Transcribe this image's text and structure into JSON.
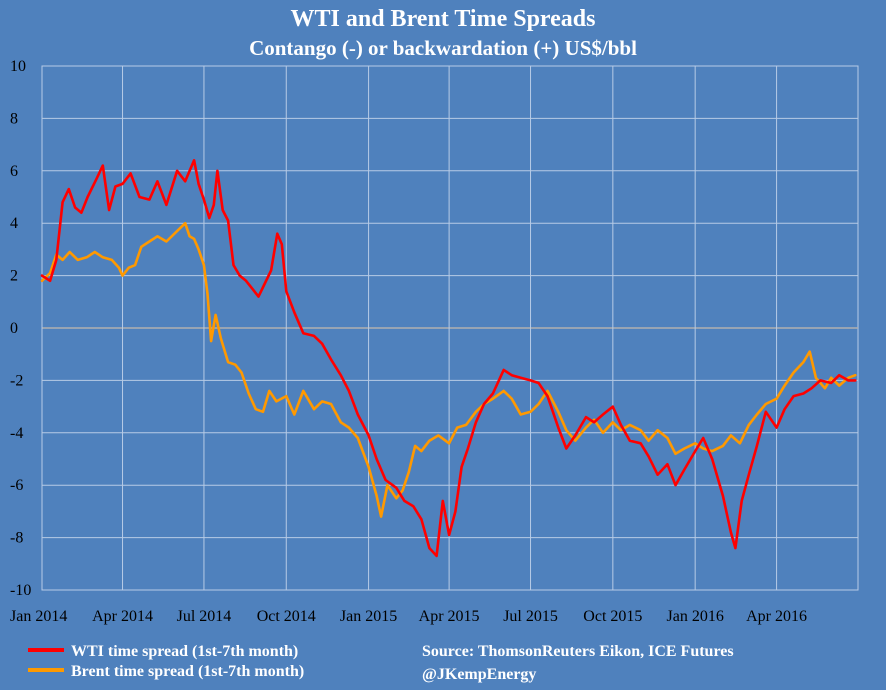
{
  "chart_data": {
    "type": "line",
    "title": "WTI  and Brent Time Spreads",
    "subtitle": "Contango (-) or backwardation (+) US$/bbl",
    "ylim": [
      -10,
      10
    ],
    "y_ticks": [
      10,
      8,
      6,
      4,
      2,
      0,
      -2,
      -4,
      -6,
      -8,
      -10
    ],
    "x_range": [
      "2014-01-01",
      "2016-07-01"
    ],
    "x_ticks": [
      {
        "date": "2014-01-01",
        "label": "Jan 2014"
      },
      {
        "date": "2014-04-01",
        "label": "Apr 2014"
      },
      {
        "date": "2014-07-01",
        "label": "Jul 2014"
      },
      {
        "date": "2014-10-01",
        "label": "Oct 2014"
      },
      {
        "date": "2015-01-01",
        "label": "Jan 2015"
      },
      {
        "date": "2015-04-01",
        "label": "Apr 2015"
      },
      {
        "date": "2015-07-01",
        "label": "Jul 2015"
      },
      {
        "date": "2015-10-01",
        "label": "Oct 2015"
      },
      {
        "date": "2016-01-01",
        "label": "Jan 2016"
      },
      {
        "date": "2016-04-01",
        "label": "Apr 2016"
      }
    ],
    "grid": true,
    "legend_position": "bottom-left",
    "series": [
      {
        "name": "WTI time spread (1st-7th month)",
        "color": "#ff0000",
        "points": [
          [
            "2014-01-01",
            2.0
          ],
          [
            "2014-01-10",
            1.8
          ],
          [
            "2014-01-17",
            2.6
          ],
          [
            "2014-01-24",
            4.8
          ],
          [
            "2014-01-31",
            5.3
          ],
          [
            "2014-02-07",
            4.6
          ],
          [
            "2014-02-14",
            4.4
          ],
          [
            "2014-02-21",
            5.0
          ],
          [
            "2014-03-03",
            5.7
          ],
          [
            "2014-03-10",
            6.2
          ],
          [
            "2014-03-17",
            4.5
          ],
          [
            "2014-03-24",
            5.4
          ],
          [
            "2014-04-01",
            5.5
          ],
          [
            "2014-04-10",
            5.9
          ],
          [
            "2014-04-20",
            5.0
          ],
          [
            "2014-05-01",
            4.9
          ],
          [
            "2014-05-10",
            5.6
          ],
          [
            "2014-05-20",
            4.7
          ],
          [
            "2014-06-01",
            6.0
          ],
          [
            "2014-06-10",
            5.6
          ],
          [
            "2014-06-20",
            6.4
          ],
          [
            "2014-06-25",
            5.5
          ],
          [
            "2014-07-01",
            4.9
          ],
          [
            "2014-07-07",
            4.2
          ],
          [
            "2014-07-12",
            4.7
          ],
          [
            "2014-07-16",
            6.0
          ],
          [
            "2014-07-22",
            4.5
          ],
          [
            "2014-07-28",
            4.1
          ],
          [
            "2014-08-03",
            2.4
          ],
          [
            "2014-08-10",
            2.0
          ],
          [
            "2014-08-17",
            1.8
          ],
          [
            "2014-08-24",
            1.5
          ],
          [
            "2014-08-31",
            1.2
          ],
          [
            "2014-09-07",
            1.7
          ],
          [
            "2014-09-14",
            2.2
          ],
          [
            "2014-09-21",
            3.6
          ],
          [
            "2014-09-26",
            3.2
          ],
          [
            "2014-10-01",
            1.4
          ],
          [
            "2014-10-10",
            0.6
          ],
          [
            "2014-10-20",
            -0.2
          ],
          [
            "2014-11-01",
            -0.3
          ],
          [
            "2014-11-10",
            -0.6
          ],
          [
            "2014-11-20",
            -1.2
          ],
          [
            "2014-12-01",
            -1.8
          ],
          [
            "2014-12-10",
            -2.4
          ],
          [
            "2014-12-20",
            -3.3
          ],
          [
            "2015-01-01",
            -4.1
          ],
          [
            "2015-01-10",
            -5.0
          ],
          [
            "2015-01-20",
            -5.8
          ],
          [
            "2015-02-01",
            -6.1
          ],
          [
            "2015-02-10",
            -6.6
          ],
          [
            "2015-02-20",
            -6.8
          ],
          [
            "2015-03-01",
            -7.3
          ],
          [
            "2015-03-10",
            -8.4
          ],
          [
            "2015-03-18",
            -8.7
          ],
          [
            "2015-03-25",
            -6.6
          ],
          [
            "2015-04-01",
            -7.9
          ],
          [
            "2015-04-08",
            -7.0
          ],
          [
            "2015-04-15",
            -5.3
          ],
          [
            "2015-04-22",
            -4.6
          ],
          [
            "2015-05-01",
            -3.6
          ],
          [
            "2015-05-10",
            -2.9
          ],
          [
            "2015-05-20",
            -2.5
          ],
          [
            "2015-06-01",
            -1.6
          ],
          [
            "2015-06-10",
            -1.8
          ],
          [
            "2015-06-20",
            -1.9
          ],
          [
            "2015-07-01",
            -2.0
          ],
          [
            "2015-07-10",
            -2.1
          ],
          [
            "2015-07-20",
            -2.6
          ],
          [
            "2015-08-01",
            -3.8
          ],
          [
            "2015-08-10",
            -4.6
          ],
          [
            "2015-08-20",
            -4.1
          ],
          [
            "2015-09-01",
            -3.4
          ],
          [
            "2015-09-10",
            -3.6
          ],
          [
            "2015-09-20",
            -3.3
          ],
          [
            "2015-10-01",
            -3.0
          ],
          [
            "2015-10-10",
            -3.7
          ],
          [
            "2015-10-20",
            -4.3
          ],
          [
            "2015-11-01",
            -4.4
          ],
          [
            "2015-11-10",
            -4.9
          ],
          [
            "2015-11-20",
            -5.6
          ],
          [
            "2015-12-01",
            -5.2
          ],
          [
            "2015-12-10",
            -6.0
          ],
          [
            "2015-12-20",
            -5.4
          ],
          [
            "2016-01-01",
            -4.7
          ],
          [
            "2016-01-10",
            -4.2
          ],
          [
            "2016-01-20",
            -5.0
          ],
          [
            "2016-02-01",
            -6.4
          ],
          [
            "2016-02-10",
            -7.8
          ],
          [
            "2016-02-15",
            -8.4
          ],
          [
            "2016-02-22",
            -6.6
          ],
          [
            "2016-03-01",
            -5.6
          ],
          [
            "2016-03-10",
            -4.5
          ],
          [
            "2016-03-20",
            -3.2
          ],
          [
            "2016-04-01",
            -3.8
          ],
          [
            "2016-04-10",
            -3.1
          ],
          [
            "2016-04-20",
            -2.6
          ],
          [
            "2016-05-01",
            -2.5
          ],
          [
            "2016-05-10",
            -2.3
          ],
          [
            "2016-05-20",
            -2.0
          ],
          [
            "2016-06-01",
            -2.1
          ],
          [
            "2016-06-10",
            -1.8
          ],
          [
            "2016-06-20",
            -2.0
          ],
          [
            "2016-06-28",
            -2.0
          ]
        ]
      },
      {
        "name": "Brent time spread (1st-7th month)",
        "color": "#ff9900",
        "points": [
          [
            "2014-01-01",
            1.8
          ],
          [
            "2014-01-10",
            2.1
          ],
          [
            "2014-01-17",
            2.8
          ],
          [
            "2014-01-24",
            2.6
          ],
          [
            "2014-02-01",
            2.9
          ],
          [
            "2014-02-10",
            2.6
          ],
          [
            "2014-02-20",
            2.7
          ],
          [
            "2014-03-01",
            2.9
          ],
          [
            "2014-03-10",
            2.7
          ],
          [
            "2014-03-20",
            2.6
          ],
          [
            "2014-03-28",
            2.3
          ],
          [
            "2014-04-01",
            2.0
          ],
          [
            "2014-04-08",
            2.3
          ],
          [
            "2014-04-15",
            2.4
          ],
          [
            "2014-04-22",
            3.1
          ],
          [
            "2014-05-01",
            3.3
          ],
          [
            "2014-05-10",
            3.5
          ],
          [
            "2014-05-20",
            3.3
          ],
          [
            "2014-06-01",
            3.7
          ],
          [
            "2014-06-10",
            4.0
          ],
          [
            "2014-06-15",
            3.5
          ],
          [
            "2014-06-20",
            3.4
          ],
          [
            "2014-06-25",
            3.0
          ],
          [
            "2014-07-01",
            2.4
          ],
          [
            "2014-07-05",
            1.3
          ],
          [
            "2014-07-09",
            -0.5
          ],
          [
            "2014-07-14",
            0.5
          ],
          [
            "2014-07-20",
            -0.4
          ],
          [
            "2014-07-28",
            -1.3
          ],
          [
            "2014-08-05",
            -1.4
          ],
          [
            "2014-08-12",
            -1.7
          ],
          [
            "2014-08-20",
            -2.5
          ],
          [
            "2014-08-28",
            -3.1
          ],
          [
            "2014-09-05",
            -3.2
          ],
          [
            "2014-09-12",
            -2.4
          ],
          [
            "2014-09-20",
            -2.8
          ],
          [
            "2014-10-01",
            -2.6
          ],
          [
            "2014-10-10",
            -3.3
          ],
          [
            "2014-10-20",
            -2.4
          ],
          [
            "2014-11-01",
            -3.1
          ],
          [
            "2014-11-10",
            -2.8
          ],
          [
            "2014-11-20",
            -2.9
          ],
          [
            "2014-12-01",
            -3.6
          ],
          [
            "2014-12-10",
            -3.8
          ],
          [
            "2014-12-20",
            -4.2
          ],
          [
            "2015-01-01",
            -5.3
          ],
          [
            "2015-01-10",
            -6.4
          ],
          [
            "2015-01-15",
            -7.2
          ],
          [
            "2015-01-22",
            -6.0
          ],
          [
            "2015-02-01",
            -6.5
          ],
          [
            "2015-02-08",
            -6.2
          ],
          [
            "2015-02-15",
            -5.5
          ],
          [
            "2015-02-22",
            -4.5
          ],
          [
            "2015-03-01",
            -4.7
          ],
          [
            "2015-03-10",
            -4.3
          ],
          [
            "2015-03-20",
            -4.1
          ],
          [
            "2015-04-01",
            -4.4
          ],
          [
            "2015-04-10",
            -3.8
          ],
          [
            "2015-04-20",
            -3.7
          ],
          [
            "2015-05-01",
            -3.2
          ],
          [
            "2015-05-10",
            -2.9
          ],
          [
            "2015-05-20",
            -2.7
          ],
          [
            "2015-06-01",
            -2.4
          ],
          [
            "2015-06-10",
            -2.7
          ],
          [
            "2015-06-20",
            -3.3
          ],
          [
            "2015-07-01",
            -3.2
          ],
          [
            "2015-07-10",
            -2.9
          ],
          [
            "2015-07-20",
            -2.4
          ],
          [
            "2015-08-01",
            -3.2
          ],
          [
            "2015-08-10",
            -3.9
          ],
          [
            "2015-08-20",
            -4.3
          ],
          [
            "2015-09-01",
            -3.8
          ],
          [
            "2015-09-10",
            -3.5
          ],
          [
            "2015-09-20",
            -4.0
          ],
          [
            "2015-10-01",
            -3.6
          ],
          [
            "2015-10-10",
            -3.9
          ],
          [
            "2015-10-20",
            -3.7
          ],
          [
            "2015-11-01",
            -3.9
          ],
          [
            "2015-11-10",
            -4.3
          ],
          [
            "2015-11-20",
            -3.9
          ],
          [
            "2015-12-01",
            -4.2
          ],
          [
            "2015-12-10",
            -4.8
          ],
          [
            "2015-12-20",
            -4.6
          ],
          [
            "2016-01-01",
            -4.4
          ],
          [
            "2016-01-10",
            -4.6
          ],
          [
            "2016-01-20",
            -4.7
          ],
          [
            "2016-02-01",
            -4.5
          ],
          [
            "2016-02-10",
            -4.1
          ],
          [
            "2016-02-20",
            -4.4
          ],
          [
            "2016-03-01",
            -3.7
          ],
          [
            "2016-03-10",
            -3.3
          ],
          [
            "2016-03-20",
            -2.9
          ],
          [
            "2016-04-01",
            -2.7
          ],
          [
            "2016-04-10",
            -2.2
          ],
          [
            "2016-04-20",
            -1.7
          ],
          [
            "2016-05-01",
            -1.3
          ],
          [
            "2016-05-08",
            -0.9
          ],
          [
            "2016-05-15",
            -1.9
          ],
          [
            "2016-05-25",
            -2.3
          ],
          [
            "2016-06-01",
            -1.9
          ],
          [
            "2016-06-10",
            -2.2
          ],
          [
            "2016-06-20",
            -1.9
          ],
          [
            "2016-06-28",
            -1.8
          ]
        ]
      }
    ]
  },
  "source_note": {
    "line1": "Source: ThomsonReuters Eikon, ICE Futures",
    "line2": "@JKempEnergy"
  }
}
